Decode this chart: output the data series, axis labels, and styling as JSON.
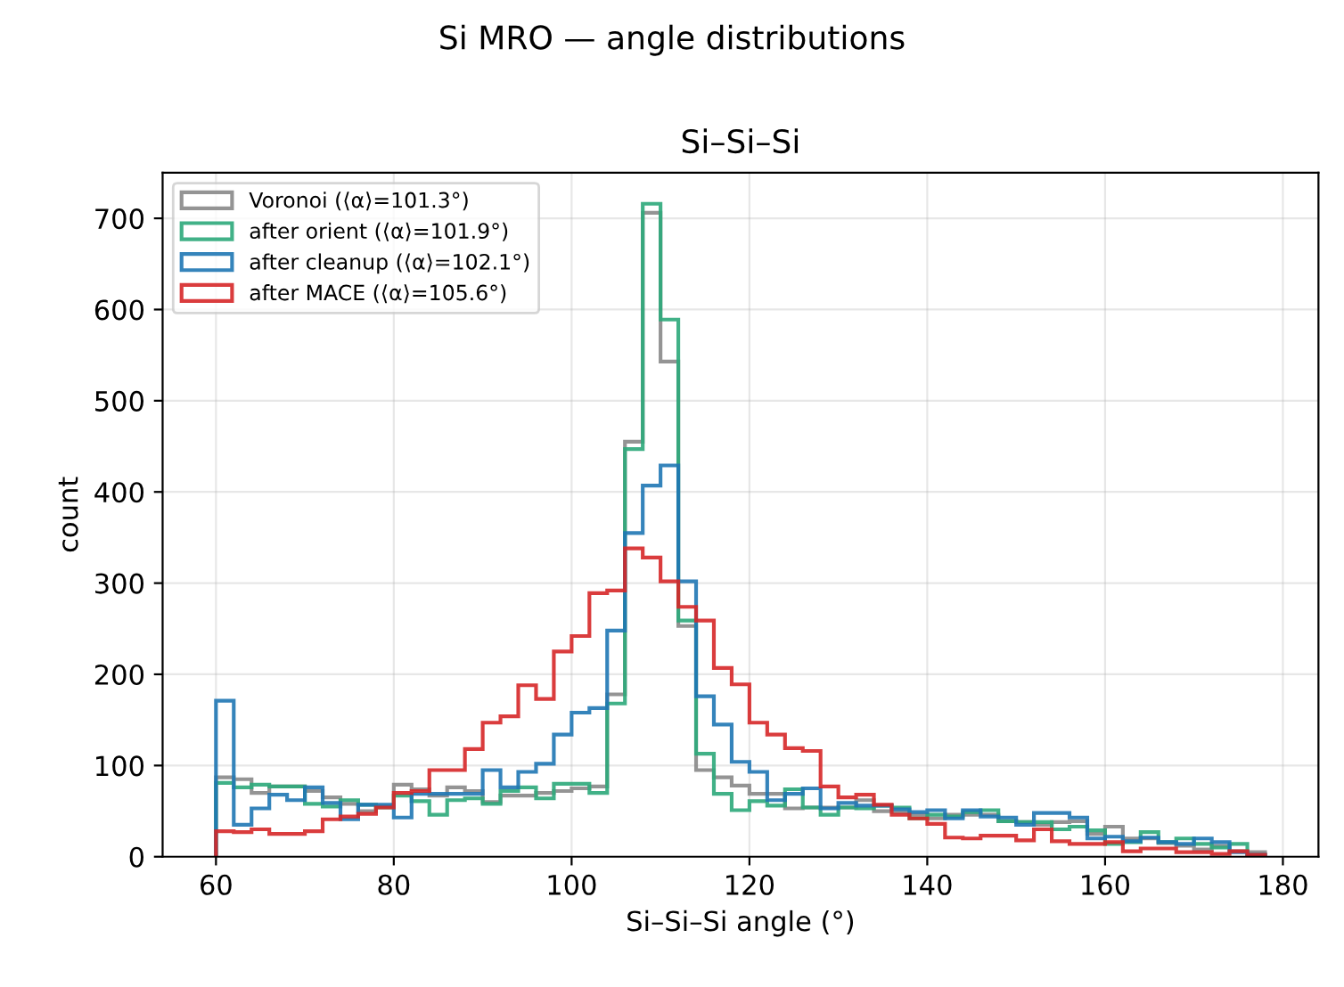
{
  "chart_data": {
    "type": "histogram",
    "title": "Si MRO — angle distributions",
    "subtitle": "Si–Si–Si",
    "xlabel": "Si–Si–Si angle (°)",
    "ylabel": "count",
    "bins": [
      60,
      62,
      64,
      66,
      68,
      70,
      72,
      74,
      76,
      78,
      80,
      82,
      84,
      86,
      88,
      90,
      92,
      94,
      96,
      98,
      100,
      102,
      104,
      106,
      108,
      110,
      112,
      114,
      116,
      118,
      120,
      122,
      124,
      126,
      128,
      130,
      132,
      134,
      136,
      138,
      140,
      142,
      144,
      146,
      148,
      150,
      152,
      154,
      156,
      158,
      160,
      162,
      164,
      166,
      168,
      170,
      172,
      174,
      176,
      178
    ],
    "series": [
      {
        "name": "Voronoi (⟨α⟩=101.3°)",
        "color": "#888888",
        "values": [
          87,
          85,
          70,
          77,
          77,
          72,
          65,
          58,
          50,
          55,
          79,
          74,
          67,
          76,
          72,
          60,
          67,
          67,
          70,
          72,
          75,
          77,
          178,
          455,
          706,
          543,
          253,
          95,
          87,
          78,
          69,
          69,
          53,
          54,
          54,
          54,
          62,
          50,
          49,
          46,
          42,
          46,
          46,
          46,
          39,
          38,
          35,
          38,
          39,
          25,
          33,
          20,
          20,
          15,
          12,
          8,
          12,
          6,
          5
        ]
      },
      {
        "name": "after orient (⟨α⟩=101.9°)",
        "color": "#2ca87a",
        "values": [
          81,
          76,
          79,
          77,
          77,
          58,
          55,
          62,
          57,
          54,
          67,
          61,
          46,
          62,
          64,
          58,
          72,
          76,
          64,
          80,
          80,
          70,
          168,
          447,
          716,
          589,
          259,
          113,
          69,
          51,
          61,
          56,
          74,
          54,
          46,
          54,
          53,
          56,
          54,
          42,
          46,
          44,
          49,
          51,
          39,
          38,
          38,
          30,
          33,
          29,
          14,
          16,
          27,
          16,
          20,
          14,
          10,
          14,
          2
        ]
      },
      {
        "name": "after cleanup (⟨α⟩=102.1°)",
        "color": "#1f77b4",
        "values": [
          171,
          35,
          53,
          68,
          62,
          76,
          59,
          41,
          57,
          57,
          43,
          69,
          69,
          69,
          69,
          95,
          76,
          93,
          102,
          134,
          158,
          163,
          248,
          355,
          407,
          429,
          302,
          176,
          145,
          104,
          93,
          62,
          69,
          75,
          53,
          59,
          56,
          56,
          52,
          49,
          51,
          42,
          51,
          44,
          43,
          35,
          48,
          48,
          43,
          20,
          22,
          17,
          21,
          16,
          14,
          20,
          16,
          5,
          2
        ]
      },
      {
        "name": "after MACE (⟨α⟩=105.6°)",
        "color": "#d62728",
        "values": [
          28,
          27,
          30,
          25,
          25,
          28,
          41,
          44,
          47,
          54,
          70,
          72,
          95,
          95,
          118,
          147,
          154,
          188,
          173,
          225,
          242,
          289,
          292,
          338,
          328,
          302,
          274,
          259,
          207,
          189,
          147,
          134,
          119,
          116,
          77,
          65,
          68,
          57,
          46,
          42,
          36,
          21,
          20,
          23,
          23,
          18,
          30,
          17,
          14,
          14,
          16,
          6,
          9,
          9,
          5,
          5,
          3,
          6,
          2
        ]
      }
    ],
    "xlim": [
      54,
      184
    ],
    "xticks": [
      60,
      80,
      100,
      120,
      140,
      160,
      180
    ],
    "ylim": [
      0,
      750
    ],
    "yticks": [
      0,
      100,
      200,
      300,
      400,
      500,
      600,
      700
    ],
    "grid": true,
    "legend": "top left"
  }
}
